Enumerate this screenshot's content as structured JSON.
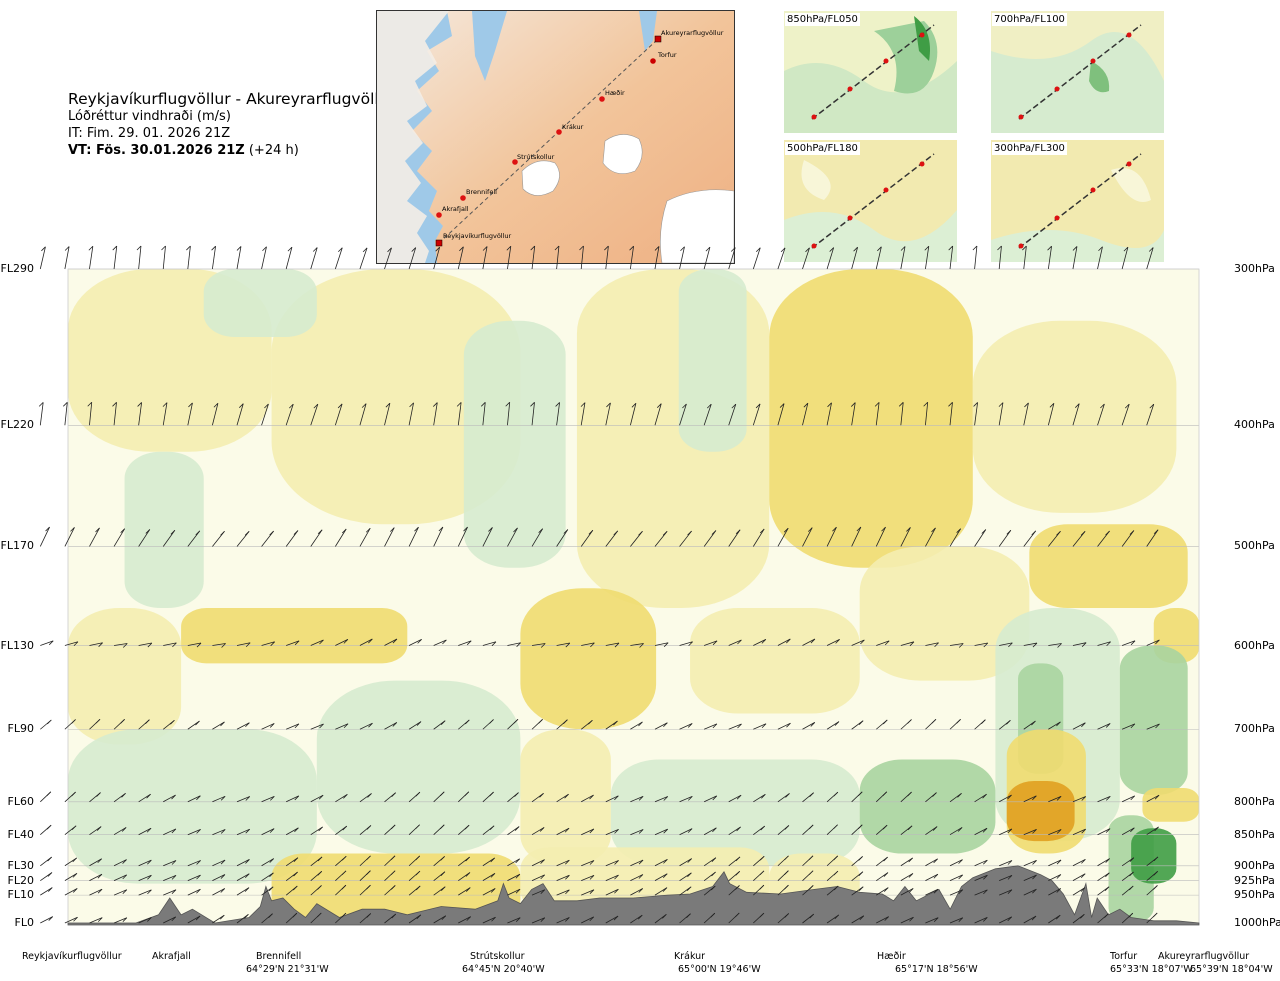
{
  "title": {
    "route": "Reykjavíkurflugvöllur - Akureyrarflugvöllur",
    "variable": "Lóðréttur vindhraði (m/s)",
    "issue_time": "IT: Fim. 29. 01. 2026 21Z",
    "valid_prefix": "VT: Fös. 30.01.2026 21Z",
    "valid_suffix": "(+24 h)"
  },
  "map": {
    "waypoints": [
      "Akureyrarflugvöllur",
      "Torfur",
      "Hæðir",
      "Krákur",
      "Strútskollur",
      "Brennifell",
      "Akrafjall",
      "Reykjavíkurflugvöllur"
    ]
  },
  "panels": [
    {
      "id": "850",
      "label": "850hPa/FL050"
    },
    {
      "id": "700",
      "label": "700hPa/FL100"
    },
    {
      "id": "500",
      "label": "500hPa/FL180"
    },
    {
      "id": "300",
      "label": "300hPa/FL300"
    }
  ],
  "chart_data": {
    "type": "heatmap",
    "title": "Lóðréttur vindhraði (m/s)",
    "left_axis": {
      "labels": [
        "FL290",
        "FL220",
        "FL170",
        "FL130",
        "FL90",
        "FL60",
        "FL40",
        "FL30",
        "FL20",
        "FL10",
        "FL0"
      ]
    },
    "right_axis": {
      "labels": [
        "300hPa",
        "400hPa",
        "500hPa",
        "600hPa",
        "700hPa",
        "800hPa",
        "850hPa",
        "900hPa",
        "925hPa",
        "950hPa",
        "1000hPa"
      ],
      "values": [
        300,
        400,
        500,
        600,
        700,
        800,
        850,
        900,
        925,
        950,
        1000
      ],
      "scale": "log-pressure",
      "range": [
        300,
        1000
      ]
    },
    "x_locations": [
      {
        "name": "Reykjavíkurflugvöllur",
        "coord": "",
        "distance_frac": 0.0
      },
      {
        "name": "Akrafjall",
        "coord": "",
        "distance_frac": 0.09
      },
      {
        "name": "Brennifell",
        "coord": "64°29'N 21°31'W",
        "distance_frac": 0.19
      },
      {
        "name": "Strútskollur",
        "coord": "64°45'N 20°40'W",
        "distance_frac": 0.38
      },
      {
        "name": "Krákur",
        "coord": "65°00'N 19°46'W",
        "distance_frac": 0.57
      },
      {
        "name": "Hæðir",
        "coord": "65°17'N 18°56'W",
        "distance_frac": 0.75
      },
      {
        "name": "Torfur",
        "coord": "65°33'N 18°07'W",
        "distance_frac": 0.955
      },
      {
        "name": "Akureyrarflugvöllur",
        "coord": "65°39'N 18°04'W",
        "distance_frac": 1.0
      }
    ],
    "colors": {
      "strong_down": "#e0a020",
      "moderate_down": "#f0dc70",
      "weak_down": "#f4edb0",
      "near_zero": "#fbfbe8",
      "weak_up": "#d6ebcf",
      "moderate_up": "#a8d4a0",
      "strong_up": "#3f9d45",
      "terrain": "#7a7a7a"
    },
    "grid": true,
    "wind_barbs": true
  }
}
